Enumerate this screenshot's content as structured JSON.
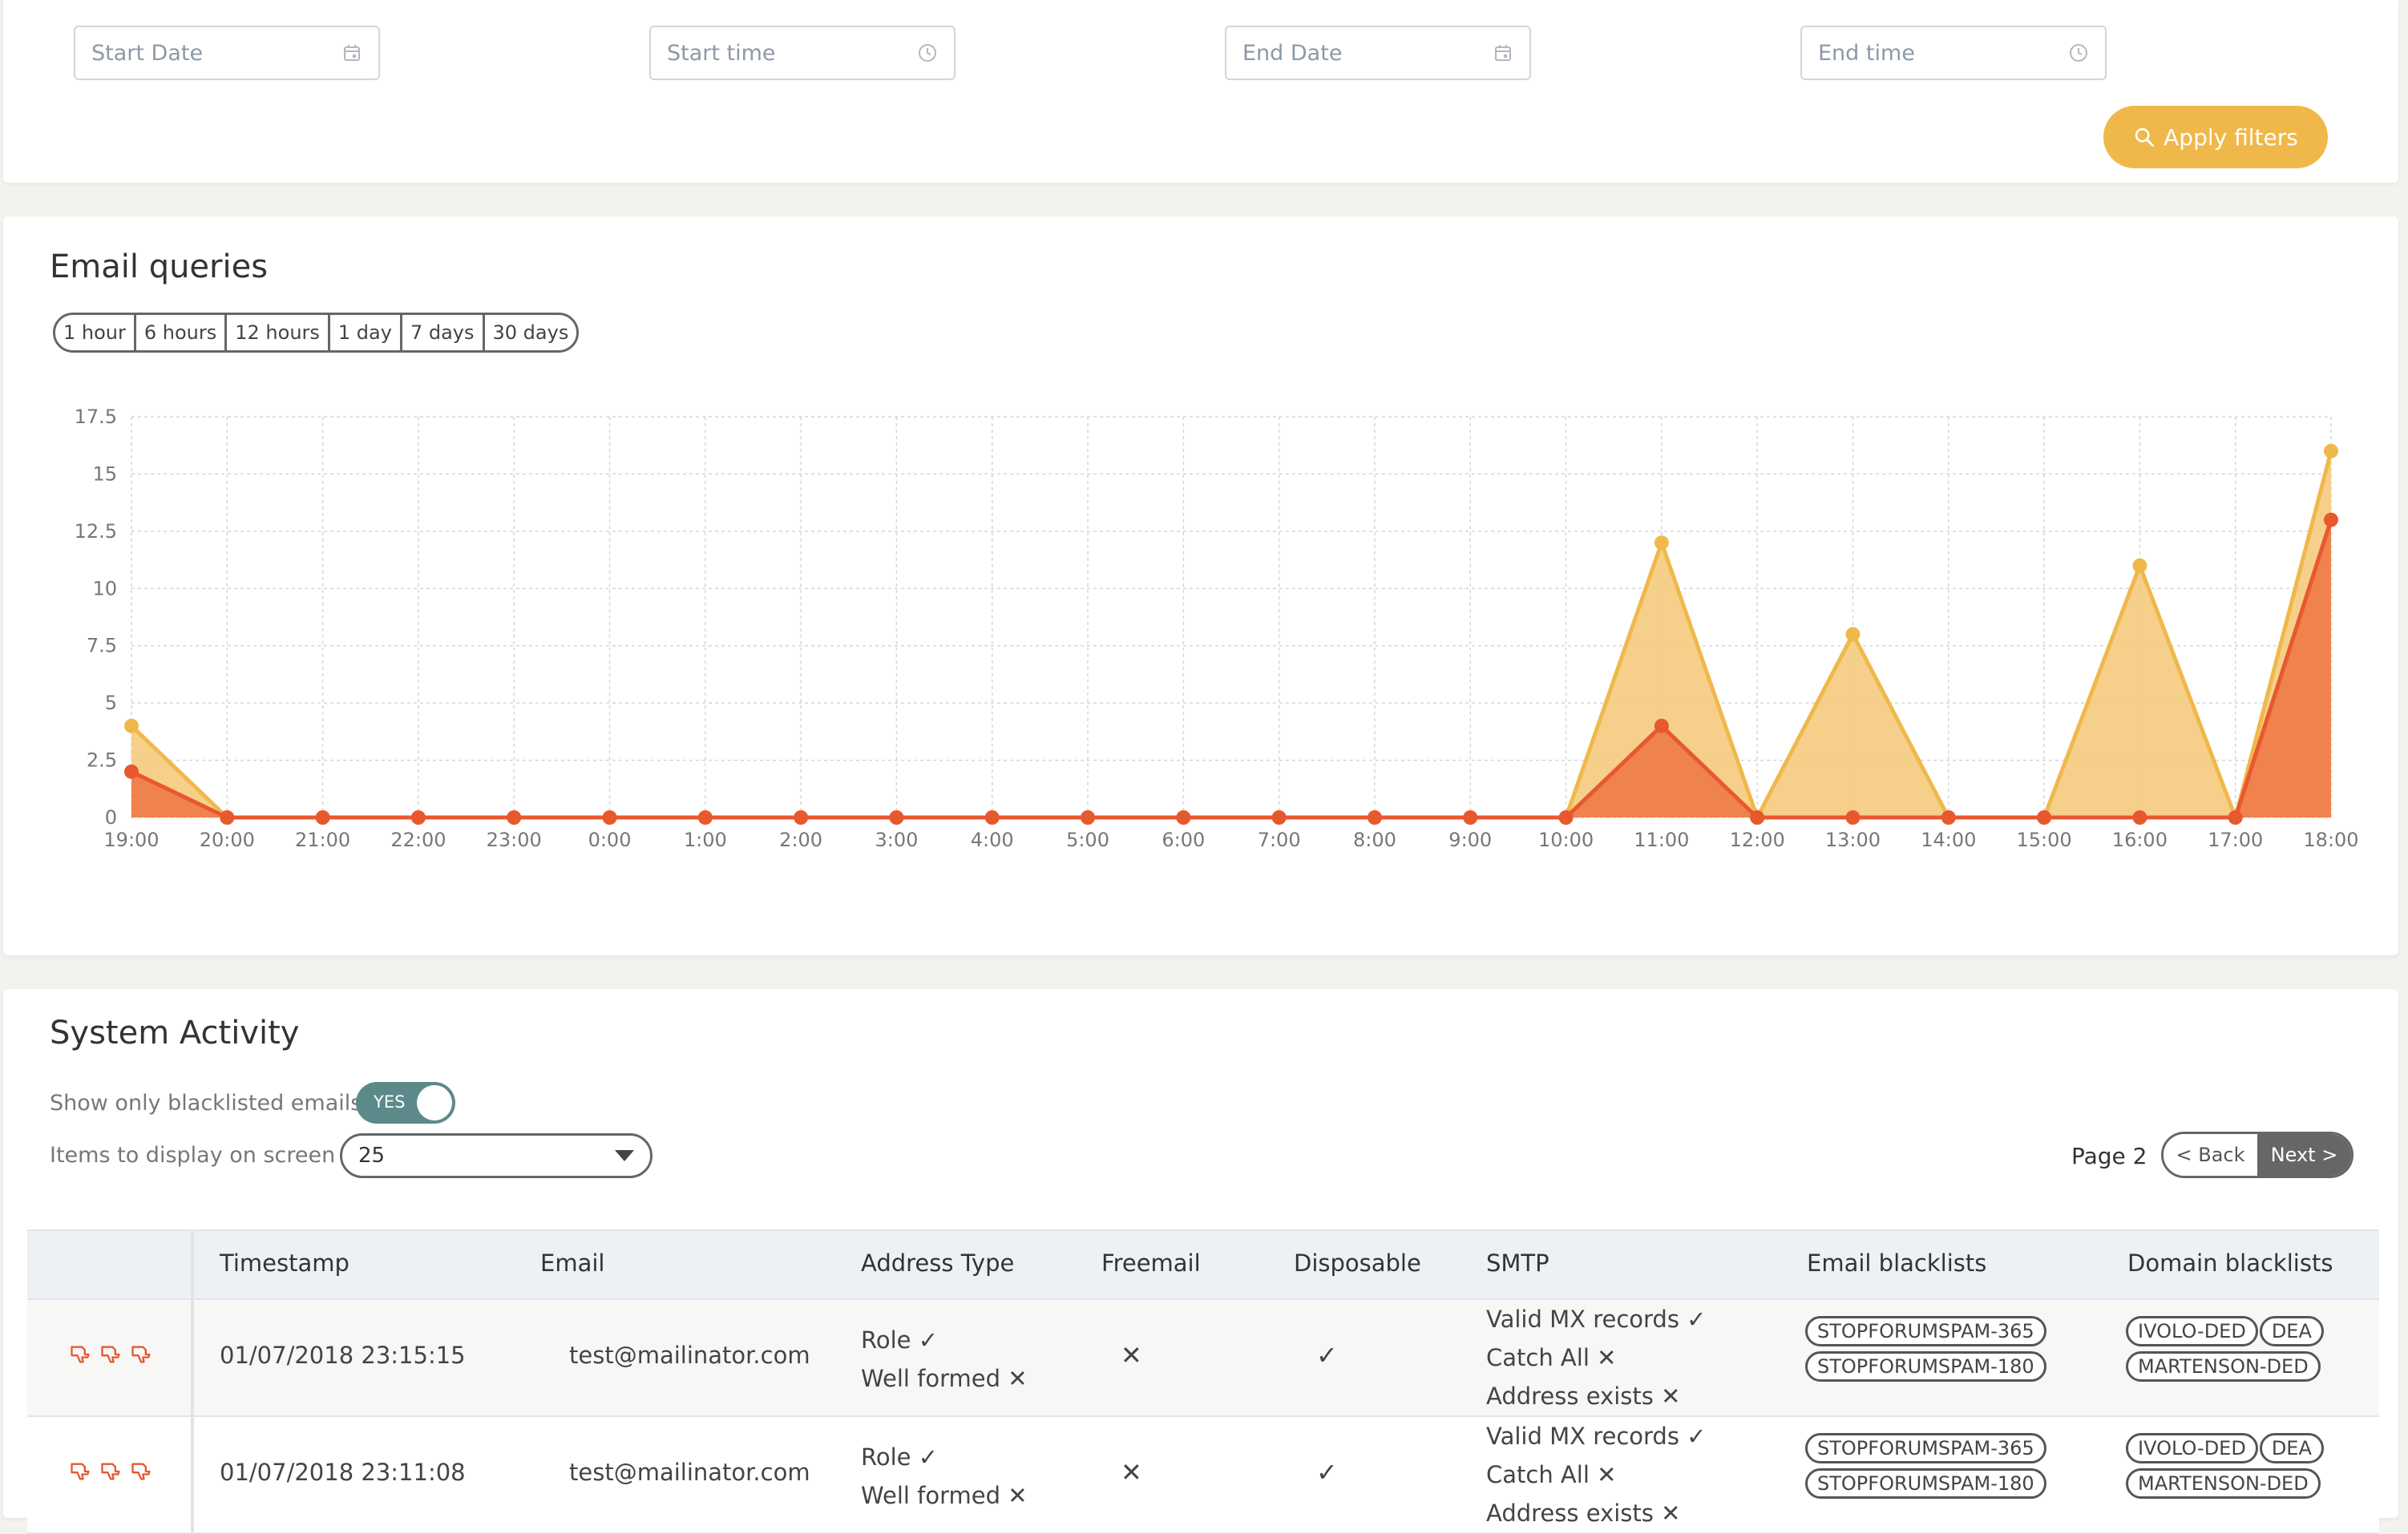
{
  "filters": {
    "start_date": {
      "placeholder": "Start Date",
      "value": ""
    },
    "start_time": {
      "placeholder": "Start time",
      "value": ""
    },
    "end_date": {
      "placeholder": "End Date",
      "value": ""
    },
    "end_time": {
      "placeholder": "End time",
      "value": ""
    },
    "apply_label": "Apply filters"
  },
  "email_queries": {
    "title": "Email queries",
    "ranges": [
      "1 hour",
      "6 hours",
      "12 hours",
      "1 day",
      "7 days",
      "30 days"
    ]
  },
  "chart_data": {
    "type": "area",
    "categories": [
      "19:00",
      "20:00",
      "21:00",
      "22:00",
      "23:00",
      "0:00",
      "1:00",
      "2:00",
      "3:00",
      "4:00",
      "5:00",
      "6:00",
      "7:00",
      "8:00",
      "9:00",
      "10:00",
      "11:00",
      "12:00",
      "13:00",
      "14:00",
      "15:00",
      "16:00",
      "17:00",
      "18:00"
    ],
    "series": [
      {
        "values": [
          4,
          0,
          0,
          0,
          0,
          0,
          0,
          0,
          0,
          0,
          0,
          0,
          0,
          0,
          0,
          0,
          12,
          0,
          8,
          0,
          0,
          11,
          0,
          16
        ],
        "color": "#f0b84b",
        "fill": "#f5cb7e"
      },
      {
        "values": [
          2,
          0,
          0,
          0,
          0,
          0,
          0,
          0,
          0,
          0,
          0,
          0,
          0,
          0,
          0,
          0,
          4,
          0,
          0,
          0,
          0,
          0,
          0,
          13
        ],
        "color": "#e8582e",
        "fill": "#ee7d4a"
      }
    ],
    "yticks": [
      "0",
      "2.5",
      "5",
      "7.5",
      "10",
      "12.5",
      "15",
      "17.5"
    ],
    "ylim": [
      0,
      17.5
    ],
    "grid": true
  },
  "activity": {
    "title": "System Activity",
    "blacklisted_label": "Show only blacklisted emails",
    "toggle_text": "YES",
    "toggle_on": true,
    "items_label": "Items to display on screen",
    "items_value": "25",
    "page_label": "Page 2",
    "back_label": "< Back",
    "next_label": "Next >",
    "columns": {
      "timestamp": "Timestamp",
      "email": "Email",
      "address_type": "Address Type",
      "freemail": "Freemail",
      "disposable": "Disposable",
      "smtp": "SMTP",
      "email_blacklists": "Email blacklists",
      "domain_blacklists": "Domain blacklists"
    },
    "rows": [
      {
        "timestamp": "01/07/2018 23:15:15",
        "email": "test@mailinator.com",
        "role_label": "Role",
        "role_mark": "✓",
        "wellformed_label": "Well formed",
        "wellformed_mark": "✕",
        "freemail": "✕",
        "disposable": "✓",
        "mx_label": "Valid MX records",
        "mx_mark": "✓",
        "catchall_label": "Catch All",
        "catchall_mark": "✕",
        "exists_label": "Address exists",
        "exists_mark": "✕",
        "email_blacklists": [
          "STOPFORUMSPAM-365",
          "STOPFORUMSPAM-180"
        ],
        "domain_blacklists": [
          "IVOLO-DED",
          "DEA",
          "MARTENSON-DED"
        ]
      },
      {
        "timestamp": "01/07/2018 23:11:08",
        "email": "test@mailinator.com",
        "role_label": "Role",
        "role_mark": "✓",
        "wellformed_label": "Well formed",
        "wellformed_mark": "✕",
        "freemail": "✕",
        "disposable": "✓",
        "mx_label": "Valid MX records",
        "mx_mark": "✓",
        "catchall_label": "Catch All",
        "catchall_mark": "✕",
        "exists_label": "Address exists",
        "exists_mark": "✕",
        "email_blacklists": [
          "STOPFORUMSPAM-365",
          "STOPFORUMSPAM-180"
        ],
        "domain_blacklists": [
          "IVOLO-DED",
          "DEA",
          "MARTENSON-DED"
        ]
      }
    ]
  }
}
